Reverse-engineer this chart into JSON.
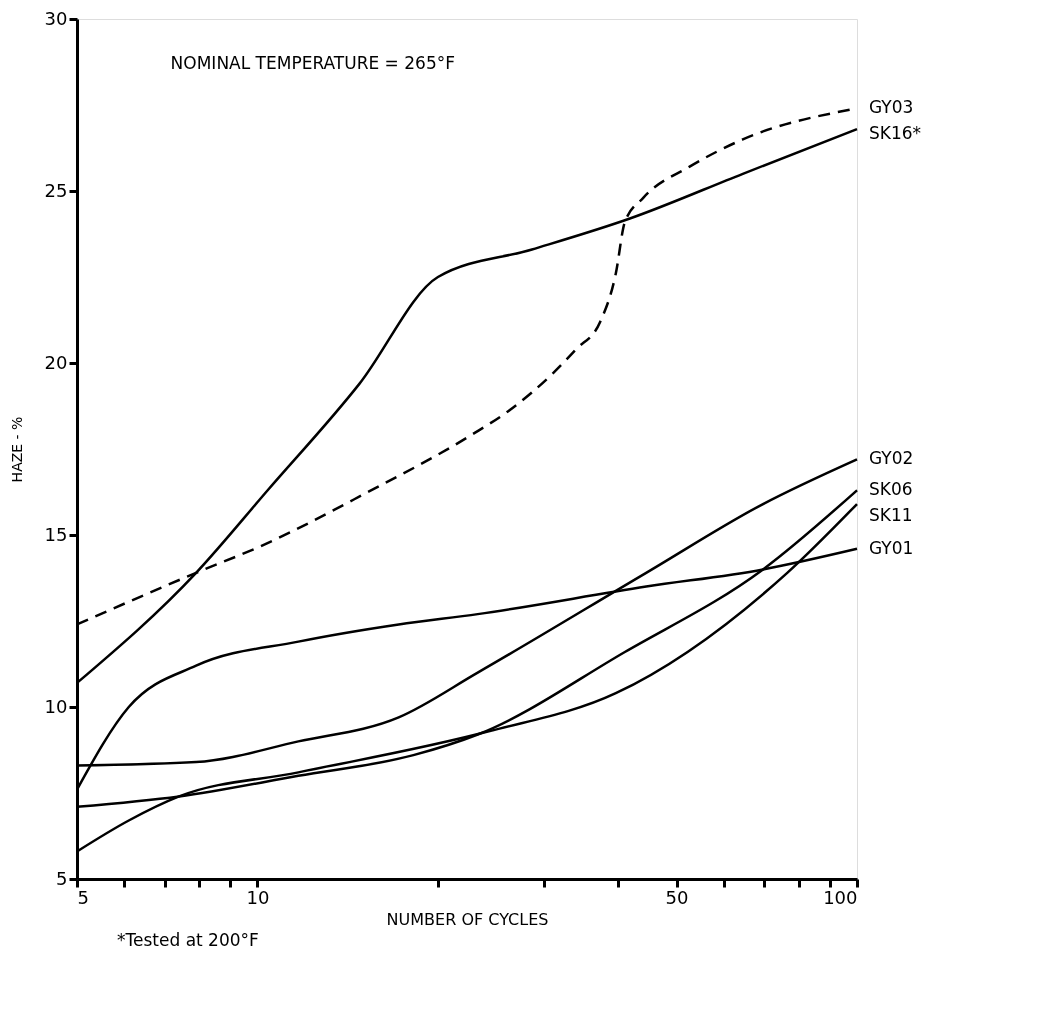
{
  "chart_data": {
    "type": "line",
    "xlabel": "NUMBER OF CYCLES",
    "ylabel": "HAZE - %",
    "log": "x",
    "xlim": [
      5,
      100
    ],
    "ylim": [
      5,
      30
    ],
    "xticks": [
      5,
      {
        "value": 6,
        "label": null
      },
      {
        "value": 7,
        "label": null
      },
      {
        "value": 8,
        "label": null
      },
      {
        "value": 9,
        "label": null
      },
      10,
      {
        "value": 20,
        "label": null
      },
      {
        "value": 30,
        "label": null
      },
      {
        "value": 40,
        "label": null
      },
      50,
      {
        "value": 60,
        "label": null
      },
      {
        "value": 70,
        "label": null
      },
      {
        "value": 80,
        "label": null
      },
      {
        "value": 90,
        "label": null
      },
      100
    ],
    "yticks": [
      5,
      10,
      15,
      20,
      25,
      30
    ],
    "grid": false,
    "marker": "none",
    "annotations": [
      "NOMINAL TEMPERATURE = 265°F",
      "*Tested at 200°F"
    ],
    "series": [
      {
        "name": "GY03",
        "color": "#000000",
        "line_style": "dashed",
        "x": [
          5,
          7.9,
          10.2,
          15.1,
          22.7,
          26.2,
          31.1,
          34.0,
          37.3,
          39.6,
          41,
          44,
          52.5,
          64.5,
          100
        ],
        "values": [
          12.4,
          13.9,
          14.7,
          16.2,
          17.9,
          18.6,
          19.7,
          20.4,
          21.2,
          22.6,
          24.1,
          24.8,
          25.7,
          26.5,
          27.4
        ]
      },
      {
        "name": "SK16*",
        "color": "#000000",
        "line_style": "solid",
        "x": [
          5,
          7.9,
          10.4,
          14.8,
          20,
          28.7,
          41.8,
          64.5,
          100
        ],
        "values": [
          10.7,
          13.9,
          16.3,
          19.4,
          22.5,
          23.3,
          24.2,
          25.5,
          26.8
        ]
      },
      {
        "name": "GY02",
        "color": "#000000",
        "line_style": "solid",
        "x": [
          5,
          7.9,
          11.7,
          17.2,
          23.3,
          44.5,
          69.7,
          100
        ],
        "values": [
          8.3,
          8.4,
          9.0,
          9.7,
          11.0,
          13.9,
          15.9,
          17.2
        ]
      },
      {
        "name": "SK06",
        "color": "#000000",
        "line_style": "solid",
        "x": [
          5,
          7.4,
          11.7,
          18.2,
          23.3,
          41,
          69.7,
          100
        ],
        "values": [
          7.1,
          7.4,
          8.0,
          8.6,
          9.2,
          11.6,
          14.0,
          16.3
        ]
      },
      {
        "name": "SK11",
        "color": "#000000",
        "line_style": "solid",
        "x": [
          5,
          6.1,
          7.4,
          11.7,
          24.4,
          39.6,
          76.5,
          100
        ],
        "values": [
          5.8,
          6.7,
          7.4,
          8.1,
          9.3,
          10.4,
          13.9,
          15.9
        ]
      },
      {
        "name": "GY01",
        "color": "#000000",
        "line_style": "solid",
        "x": [
          5,
          6.1,
          7.9,
          11.7,
          17.2,
          23.3,
          44.5,
          69.7,
          100
        ],
        "values": [
          7.6,
          10.0,
          11.2,
          11.9,
          12.4,
          12.7,
          13.5,
          14.0,
          14.6
        ]
      }
    ]
  }
}
